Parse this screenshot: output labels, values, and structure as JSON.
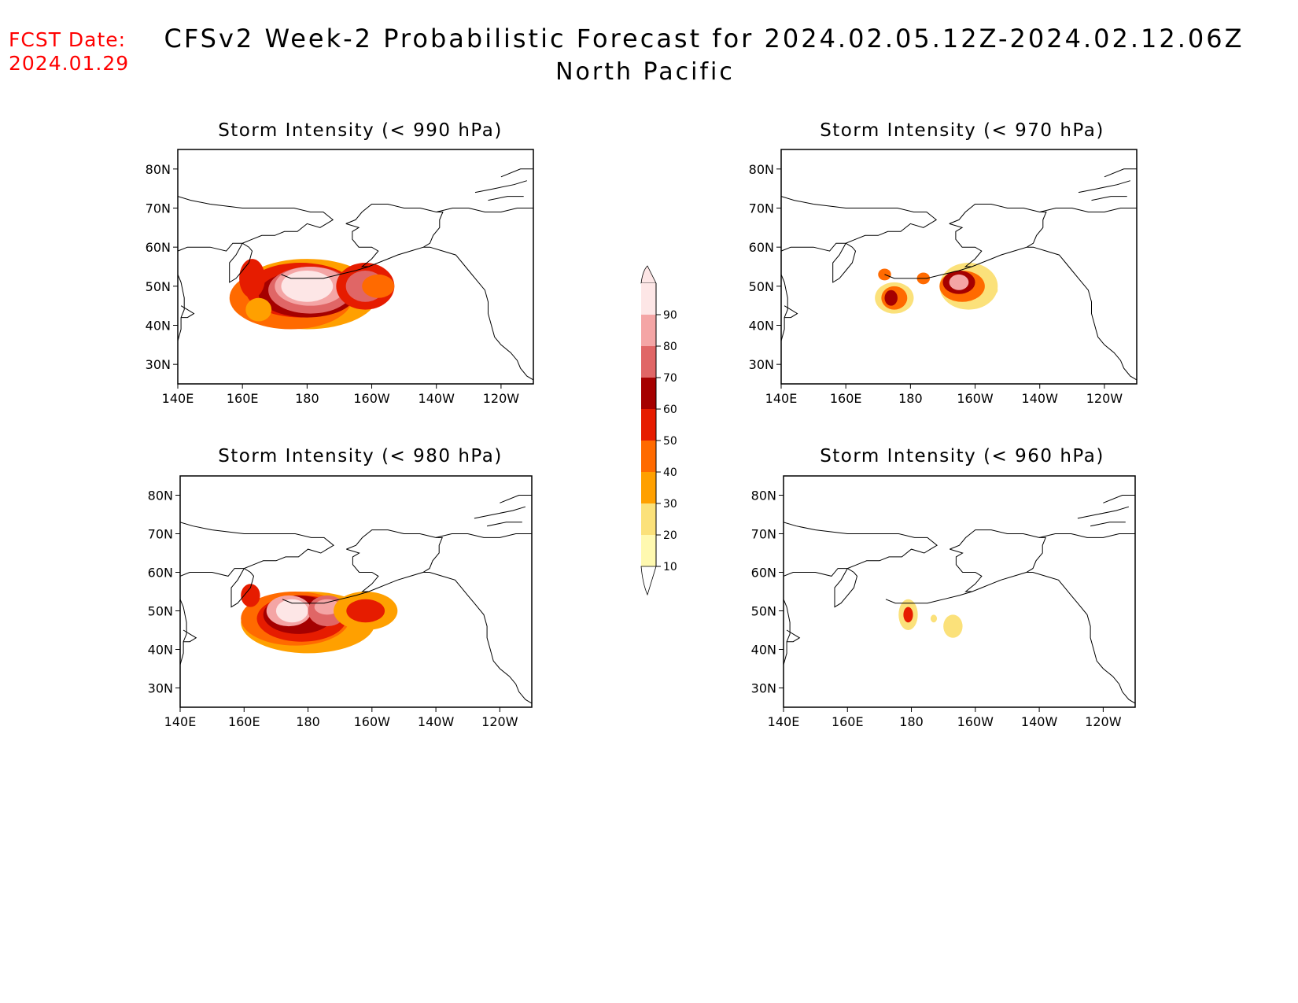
{
  "fcst_date": {
    "label": "FCST Date:",
    "value": "2024.01.29"
  },
  "title": "CFSv2 Week-2 Probabilistic Forecast for 2024.02.05.12Z-2024.02.12.06Z",
  "subtitle": "North Pacific",
  "lat_ticks": [
    "80N",
    "70N",
    "60N",
    "50N",
    "40N",
    "30N"
  ],
  "lon_ticks": [
    "140E",
    "160E",
    "180",
    "160W",
    "140W",
    "120W"
  ],
  "panels": [
    {
      "id": "p990",
      "title": "Storm Intensity (< 990 hPa)"
    },
    {
      "id": "p970",
      "title": "Storm Intensity (< 970 hPa)"
    },
    {
      "id": "p980",
      "title": "Storm Intensity (< 980 hPa)"
    },
    {
      "id": "p960",
      "title": "Storm Intensity (< 960 hPa)"
    }
  ],
  "colorbar": {
    "levels": [
      "10",
      "20",
      "30",
      "40",
      "50",
      "60",
      "70",
      "80",
      "90"
    ],
    "colors": [
      "#fff9b0",
      "#fbe17a",
      "#ffa000",
      "#ff6a00",
      "#e61c00",
      "#a50000",
      "#e06666",
      "#f4a5a5",
      "#fde6e6"
    ]
  },
  "land_color": "#ffffff",
  "coast_color": "#000000"
}
